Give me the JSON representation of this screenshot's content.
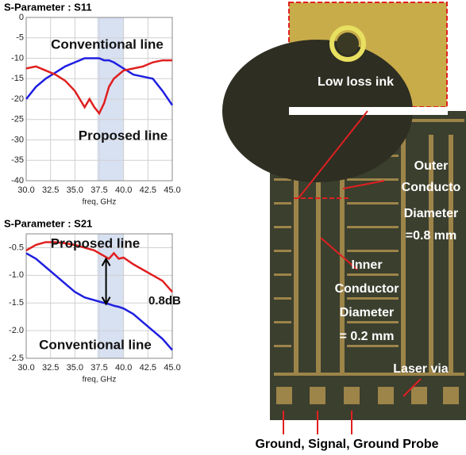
{
  "chart_data": [
    {
      "type": "line",
      "title": "S-Parameter : S11",
      "x_label": "freq, GHz",
      "x": [
        30,
        31,
        32,
        33,
        34,
        35,
        35.5,
        36,
        36.5,
        37,
        37.5,
        38,
        38.5,
        39,
        40,
        41,
        42,
        43,
        44,
        45
      ],
      "series": [
        {
          "name": "Conventional line",
          "color": "#1f1fe0",
          "values": [
            -20,
            -17,
            -15,
            -13.5,
            -12,
            -11,
            -10.5,
            -10,
            -10,
            -10,
            -10,
            -10.5,
            -10.5,
            -11,
            -12.5,
            -14,
            -14.5,
            -15,
            -18,
            -21.5
          ]
        },
        {
          "name": "Proposed line",
          "color": "#e01f1f",
          "values": [
            -12.5,
            -12,
            -13,
            -14,
            -15.5,
            -18,
            -20,
            -22,
            -20,
            -22,
            -23.5,
            -21,
            -17,
            -15,
            -13,
            -12.5,
            -12,
            -11,
            -10.5,
            -10.5
          ]
        }
      ],
      "band": [
        37.3,
        40
      ],
      "xlim": [
        30,
        45
      ],
      "xticks": [
        {
          "value": 30,
          "label": "30.0"
        },
        32.5,
        {
          "value": 35,
          "label": "35.0"
        },
        37.5,
        {
          "value": 40,
          "label": "40.0"
        },
        42.5,
        {
          "value": 45,
          "label": "45.0"
        }
      ],
      "ylim": [
        -40,
        0
      ],
      "yticks": [
        0,
        -5,
        -10,
        -15,
        -20,
        -25,
        -30,
        -35,
        -40
      ],
      "grid": true
    },
    {
      "type": "line",
      "title": "S-Parameter : S21",
      "x_label": "freq, GHz",
      "annotation": "0.8dB",
      "x": [
        30,
        31,
        32,
        33,
        34,
        35,
        36,
        37,
        38,
        38.5,
        39,
        39.5,
        40,
        41,
        42,
        43,
        44,
        45
      ],
      "series": [
        {
          "name": "Proposed line",
          "color": "#e01f1f",
          "values": [
            -0.55,
            -0.45,
            -0.4,
            -0.4,
            -0.42,
            -0.45,
            -0.5,
            -0.55,
            -0.65,
            -0.7,
            -0.6,
            -0.7,
            -0.68,
            -0.8,
            -0.9,
            -1.0,
            -1.1,
            -1.3
          ]
        },
        {
          "name": "Conventional line",
          "color": "#1f1fe0",
          "values": [
            -0.6,
            -0.7,
            -0.85,
            -1.0,
            -1.15,
            -1.3,
            -1.4,
            -1.45,
            -1.5,
            -1.52,
            -1.55,
            -1.57,
            -1.6,
            -1.7,
            -1.85,
            -2.0,
            -2.15,
            -2.35
          ]
        }
      ],
      "band": [
        37.3,
        40
      ],
      "xlim": [
        30,
        45
      ],
      "xticks": [
        {
          "value": 30,
          "label": "30.0"
        },
        32.5,
        {
          "value": 35,
          "label": "35.0"
        },
        37.5,
        {
          "value": 40,
          "label": "40.0"
        },
        42.5,
        {
          "value": 45,
          "label": "45.0"
        }
      ],
      "ylim": [
        -2.5,
        -0.25
      ],
      "yticks": [
        {
          "value": -0.5,
          "label": "-0.5"
        },
        {
          "value": -1,
          "label": "-1.0"
        },
        {
          "value": -1.5,
          "label": "-1.5"
        },
        {
          "value": -2,
          "label": "-2.0"
        },
        {
          "value": -2.5,
          "label": "-2.5"
        }
      ],
      "grid": true
    }
  ],
  "photo": {
    "inset_label": "Low loss ink",
    "outer_label": [
      "Outer",
      "Conducto",
      "Diameter",
      "=0.8 mm"
    ],
    "inner_label": [
      "Inner",
      "Conductor",
      "Diameter",
      "= 0.2 mm"
    ],
    "via_label": "Laser via",
    "probe_label": "Ground, Signal, Ground Probe"
  }
}
